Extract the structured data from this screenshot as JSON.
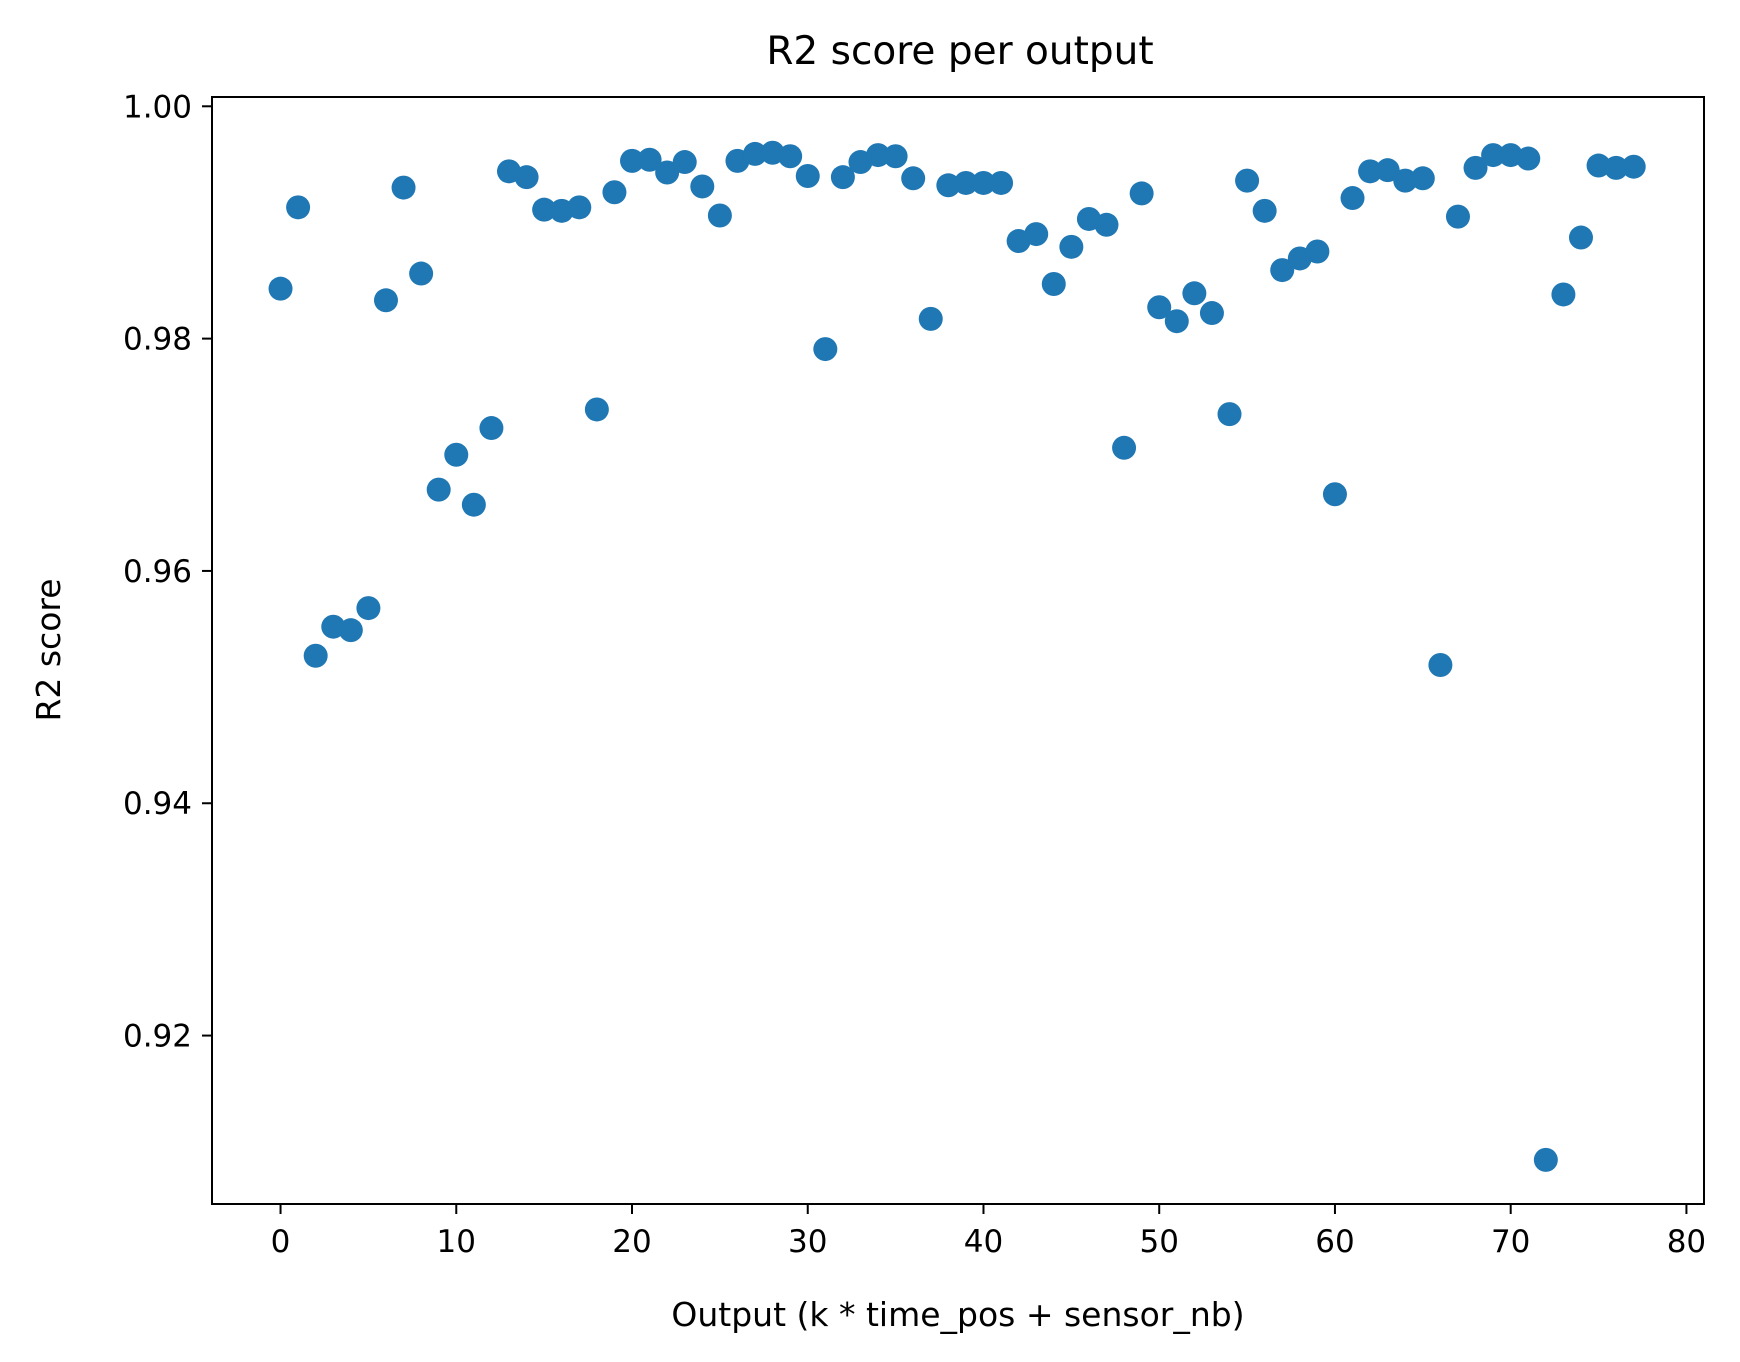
{
  "chart_data": {
    "type": "scatter",
    "title": "R2 score per output",
    "xlabel": "Output (k * time_pos + sensor_nb)",
    "ylabel": "R2 score",
    "xlim": [
      -3.9,
      81
    ],
    "ylim": [
      0.9055,
      1.0008
    ],
    "xticks": [
      0,
      10,
      20,
      30,
      40,
      50,
      60,
      70,
      80
    ],
    "yticks": [
      0.92,
      0.94,
      0.96,
      0.98,
      1.0
    ],
    "ytick_labels": [
      "0.92",
      "0.94",
      "0.96",
      "0.98",
      "1.00"
    ],
    "grid": false,
    "marker_color": "#1f77b4",
    "x": [
      0,
      1,
      2,
      3,
      4,
      5,
      6,
      7,
      8,
      9,
      10,
      11,
      12,
      13,
      14,
      15,
      16,
      17,
      18,
      19,
      20,
      21,
      22,
      23,
      24,
      25,
      26,
      27,
      28,
      29,
      30,
      31,
      32,
      33,
      34,
      35,
      36,
      37,
      38,
      39,
      40,
      41,
      42,
      43,
      44,
      45,
      46,
      47,
      48,
      49,
      50,
      51,
      52,
      53,
      54,
      55,
      56,
      57,
      58,
      59,
      60,
      61,
      62,
      63,
      64,
      65,
      66,
      67,
      68,
      69,
      70,
      71,
      72,
      73,
      74,
      75,
      76,
      77
    ],
    "y": [
      0.9843,
      0.9913,
      0.9527,
      0.9552,
      0.9549,
      0.9568,
      0.9833,
      0.993,
      0.9856,
      0.967,
      0.97,
      0.9657,
      0.9723,
      0.9944,
      0.9939,
      0.9911,
      0.991,
      0.9913,
      0.9739,
      0.9926,
      0.9953,
      0.9954,
      0.9943,
      0.9952,
      0.9931,
      0.9906,
      0.9953,
      0.9959,
      0.996,
      0.9957,
      0.994,
      0.9791,
      0.9939,
      0.9952,
      0.9958,
      0.9957,
      0.9938,
      0.9817,
      0.9932,
      0.9934,
      0.9934,
      0.9934,
      0.9884,
      0.989,
      0.9847,
      0.9879,
      0.9903,
      0.9898,
      0.9706,
      0.9925,
      0.9827,
      0.9815,
      0.9839,
      0.9822,
      0.9735,
      0.9936,
      0.991,
      0.9859,
      0.9869,
      0.9875,
      0.9666,
      0.9921,
      0.9944,
      0.9945,
      0.9936,
      0.9938,
      0.9519,
      0.9905,
      0.9947,
      0.9958,
      0.9958,
      0.9955,
      0.9093,
      0.9838,
      0.9887,
      0.9949,
      0.9947,
      0.9948
    ]
  }
}
